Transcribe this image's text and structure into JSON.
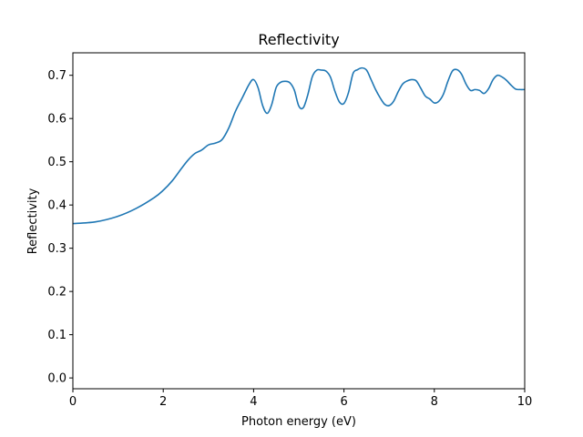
{
  "chart_data": {
    "type": "line",
    "title": "Reflectivity",
    "xlabel": "Photon energy (eV)",
    "ylabel": "Reflectivity",
    "xlim": [
      0,
      10
    ],
    "ylim": [
      -0.025,
      0.752
    ],
    "xticks": [
      0,
      2,
      4,
      6,
      8,
      10
    ],
    "yticks": [
      0.0,
      0.1,
      0.2,
      0.3,
      0.4,
      0.5,
      0.6,
      0.7
    ],
    "ytick_labels": [
      "0.0",
      "0.1",
      "0.2",
      "0.3",
      "0.4",
      "0.5",
      "0.6",
      "0.7"
    ],
    "grid": false,
    "line_color": "#1f77b4",
    "series": [
      {
        "x": [
          0,
          0.5,
          1.0,
          1.4,
          1.8,
          2.0,
          2.2,
          2.4,
          2.55,
          2.7,
          2.85,
          3.0,
          3.15,
          3.3,
          3.45,
          3.6,
          3.75,
          3.9,
          4.0,
          4.1,
          4.2,
          4.3,
          4.4,
          4.5,
          4.6,
          4.7,
          4.8,
          4.9,
          5.0,
          5.1,
          5.2,
          5.3,
          5.4,
          5.5,
          5.6,
          5.7,
          5.8,
          5.9,
          6.0,
          6.1,
          6.2,
          6.3,
          6.4,
          6.5,
          6.6,
          6.7,
          6.8,
          6.9,
          7.0,
          7.1,
          7.2,
          7.3,
          7.4,
          7.5,
          7.6,
          7.7,
          7.8,
          7.9,
          8.0,
          8.1,
          8.2,
          8.3,
          8.4,
          8.5,
          8.6,
          8.7,
          8.8,
          8.9,
          9.0,
          9.1,
          9.2,
          9.3,
          9.4,
          9.5,
          9.6,
          9.7,
          9.8,
          9.9,
          10.0
        ],
        "y": [
          0.357,
          0.361,
          0.374,
          0.392,
          0.417,
          0.434,
          0.456,
          0.484,
          0.504,
          0.519,
          0.527,
          0.539,
          0.543,
          0.551,
          0.578,
          0.617,
          0.648,
          0.679,
          0.69,
          0.671,
          0.63,
          0.612,
          0.632,
          0.672,
          0.684,
          0.686,
          0.683,
          0.666,
          0.629,
          0.625,
          0.655,
          0.697,
          0.712,
          0.712,
          0.71,
          0.696,
          0.663,
          0.638,
          0.635,
          0.66,
          0.704,
          0.713,
          0.717,
          0.712,
          0.69,
          0.667,
          0.648,
          0.633,
          0.63,
          0.64,
          0.662,
          0.68,
          0.687,
          0.69,
          0.687,
          0.67,
          0.652,
          0.645,
          0.636,
          0.64,
          0.656,
          0.686,
          0.71,
          0.713,
          0.703,
          0.68,
          0.665,
          0.667,
          0.665,
          0.658,
          0.669,
          0.69,
          0.7,
          0.696,
          0.688,
          0.677,
          0.668,
          0.667,
          0.667
        ]
      }
    ]
  }
}
